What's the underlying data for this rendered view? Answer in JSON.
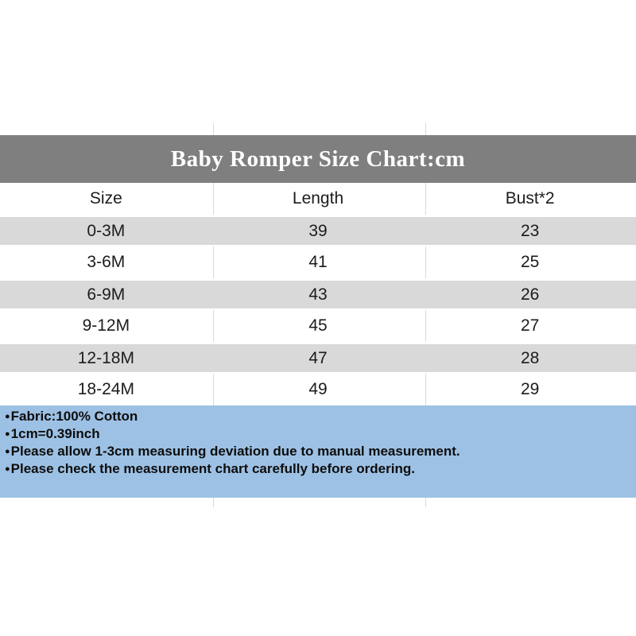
{
  "banner": {
    "title": "Baby Romper Size Chart:cm",
    "background": "#7f7f7f",
    "text_color": "#ffffff"
  },
  "table": {
    "headers": [
      "Size",
      "Length",
      "Bust*2"
    ],
    "rows": [
      [
        "0-3M",
        "39",
        "23"
      ],
      [
        "3-6M",
        "41",
        "25"
      ],
      [
        "6-9M",
        "43",
        "26"
      ],
      [
        "9-12M",
        "45",
        "27"
      ],
      [
        "12-18M",
        "47",
        "28"
      ],
      [
        "18-24M",
        "49",
        "29"
      ]
    ],
    "stripe_color": "#d9d9d9"
  },
  "notes": {
    "background": "#9dc1e4",
    "bullet": "●",
    "items": [
      "Fabric:100% Cotton",
      "1cm=0.39inch",
      "Please allow 1-3cm measuring deviation due to manual measurement.",
      "Please check the measurement chart carefully before ordering."
    ]
  },
  "chart_data": {
    "type": "table",
    "title": "Baby Romper Size Chart:cm",
    "unit": "cm",
    "columns": [
      "Size",
      "Length",
      "Bust*2"
    ],
    "rows": [
      [
        "0-3M",
        39,
        23
      ],
      [
        "3-6M",
        41,
        25
      ],
      [
        "6-9M",
        43,
        26
      ],
      [
        "9-12M",
        45,
        27
      ],
      [
        "12-18M",
        47,
        28
      ],
      [
        "18-24M",
        49,
        29
      ]
    ],
    "notes": [
      "Fabric:100% Cotton",
      "1cm=0.39inch",
      "Please allow 1-3cm measuring deviation due to manual measurement.",
      "Please check the measurement chart carefully before ordering."
    ]
  }
}
